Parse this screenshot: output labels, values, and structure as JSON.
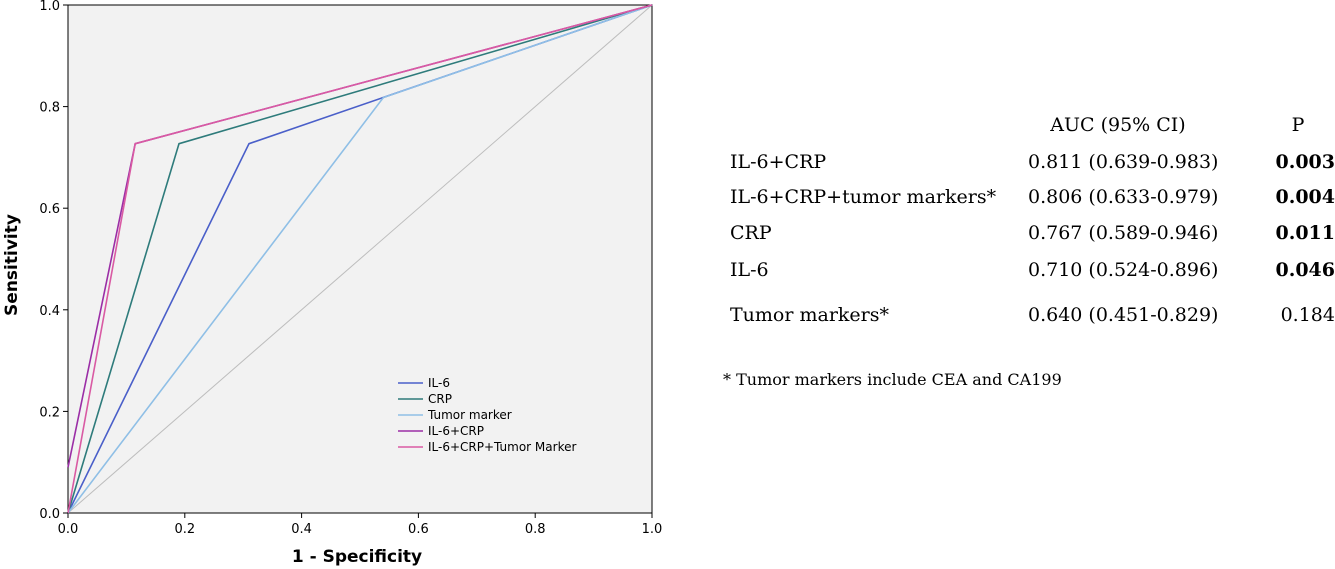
{
  "chart_data": {
    "type": "line",
    "xlabel": "1 - Specificity",
    "ylabel": "Sensitivity",
    "xlim": [
      0,
      1
    ],
    "ylim": [
      0,
      1
    ],
    "x_ticks": [
      "0.0",
      "0.2",
      "0.4",
      "0.6",
      "0.8",
      "1.0"
    ],
    "y_ticks": [
      "0.0",
      "0.2",
      "0.4",
      "0.6",
      "0.8",
      "1.0"
    ],
    "grid": false,
    "legend_position": "bottom-right",
    "diagonal_reference": true,
    "series": [
      {
        "name": "IL-6",
        "color": "#4a5fc9",
        "x": [
          0,
          0.31,
          1
        ],
        "y": [
          0,
          0.727,
          1
        ]
      },
      {
        "name": "CRP",
        "color": "#2e7b7b",
        "x": [
          0,
          0.19,
          1
        ],
        "y": [
          0,
          0.727,
          1
        ]
      },
      {
        "name": "Tumor marker",
        "color": "#8fbfe6",
        "x": [
          0,
          0.54,
          1
        ],
        "y": [
          0,
          0.818,
          1
        ]
      },
      {
        "name": "IL-6+CRP",
        "color": "#9b2ea6",
        "x": [
          0,
          0.115,
          1
        ],
        "y": [
          0.09,
          0.727,
          1
        ]
      },
      {
        "name": "IL-6+CRP+Tumor Marker",
        "color": "#d95aa3",
        "x": [
          0,
          0.115,
          1
        ],
        "y": [
          0,
          0.727,
          1
        ]
      }
    ]
  },
  "table": {
    "header": {
      "auc": "AUC (95% CI)",
      "p": "P"
    },
    "rows": [
      {
        "label": "IL-6+CRP",
        "auc": "0.811 (0.639-0.983)",
        "p": "0.003",
        "bold": true
      },
      {
        "label": "IL-6+CRP+tumor markers*",
        "auc": "0.806 (0.633-0.979)",
        "p": "0.004",
        "bold": true
      },
      {
        "label": "CRP",
        "auc": "0.767 (0.589-0.946)",
        "p": "0.011",
        "bold": true
      },
      {
        "label": "IL-6",
        "auc": "0.710 (0.524-0.896)",
        "p": "0.046",
        "bold": true
      },
      {
        "label": "Tumor markers*",
        "auc": "0.640 (0.451-0.829)",
        "p": "0.184",
        "bold": false
      }
    ],
    "footnote": "* Tumor markers include CEA and CA199"
  }
}
